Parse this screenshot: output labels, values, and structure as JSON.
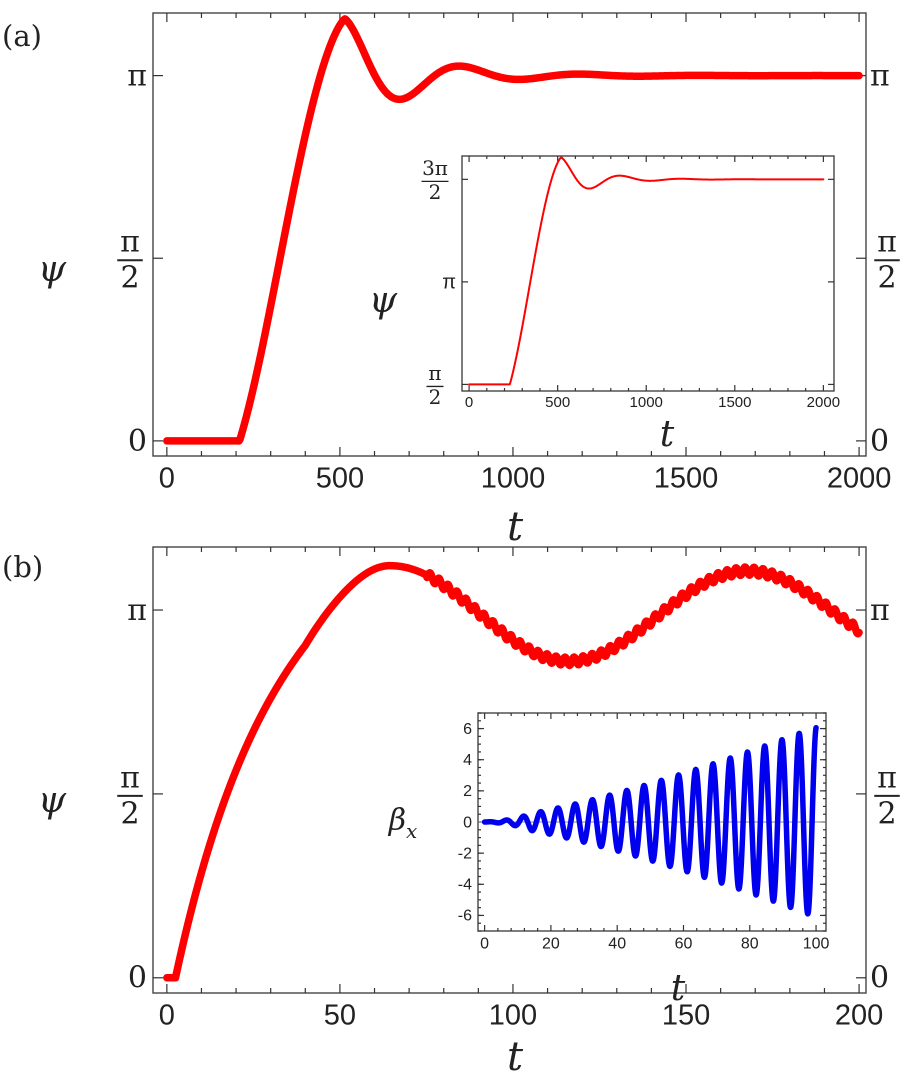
{
  "panel_labels": {
    "a": "(a)",
    "b": "(b)"
  },
  "colors": {
    "main_curve": "#ff0000",
    "inset_b_curve": "#0000ee",
    "frame": "#444444"
  },
  "chart_data": [
    {
      "id": "a-main",
      "type": "line",
      "xlabel": "t",
      "ylabel": "ψ",
      "xlim": [
        -40,
        2020
      ],
      "ylim": [
        -0.13,
        3.68
      ],
      "x_ticks": [
        0,
        500,
        1000,
        1500,
        2000
      ],
      "x_tick_labels": [
        "0",
        "500",
        "1000",
        "1500",
        "2000"
      ],
      "y_ticks": [
        0,
        1.5708,
        3.14159
      ],
      "y_tick_labels": [
        [
          "0"
        ],
        [
          "π",
          "2"
        ],
        [
          "π"
        ]
      ],
      "model": {
        "kind": "damped_step",
        "x0": 210,
        "rise_end": 470,
        "final": 3.14159,
        "peak": 3.63,
        "peak_at": 515,
        "period": 345,
        "decay": 0.0053
      },
      "series": [
        {
          "color": "#ff0000",
          "points": [
            [
              0,
              0
            ],
            [
              210,
              0
            ],
            [
              300,
              0.9
            ],
            [
              400,
              2.35
            ],
            [
              470,
              3.3
            ],
            [
              515,
              3.63
            ],
            [
              600,
              3.4
            ],
            [
              700,
              2.96
            ],
            [
              860,
              3.47
            ],
            [
              1000,
              2.98
            ],
            [
              1180,
              3.3
            ],
            [
              1340,
              3.06
            ],
            [
              1500,
              3.22
            ],
            [
              1700,
              3.1
            ],
            [
              2000,
              3.14
            ]
          ]
        }
      ]
    },
    {
      "id": "a-inset",
      "type": "line",
      "xlabel": "t",
      "ylabel": "ψ",
      "xlim": [
        -40,
        2060
      ],
      "ylim": [
        1.47,
        5.07
      ],
      "x_ticks": [
        0,
        500,
        1000,
        1500,
        2000
      ],
      "x_tick_labels": [
        "0",
        "500",
        "1000",
        "1500",
        "2000"
      ],
      "y_ticks": [
        1.5708,
        3.14159,
        4.71239
      ],
      "y_tick_labels": [
        [
          "π",
          "2"
        ],
        [
          "π"
        ],
        [
          "3π",
          "2"
        ]
      ],
      "model": {
        "kind": "damped_step",
        "x0": 230,
        "rise_end": 470,
        "start": 1.5708,
        "final": 4.71239,
        "peak": 5.05,
        "peak_at": 520,
        "period": 345,
        "decay": 0.0053
      },
      "series": [
        {
          "color": "#ff0000",
          "points": [
            [
              0,
              1.5708
            ],
            [
              230,
              1.5708
            ],
            [
              520,
              5.05
            ],
            [
              710,
              4.18
            ],
            [
              880,
              4.98
            ],
            [
              1040,
              4.5
            ],
            [
              1210,
              4.8
            ],
            [
              2000,
              4.71
            ]
          ]
        }
      ]
    },
    {
      "id": "b-main",
      "type": "line",
      "xlabel": "t",
      "ylabel": "ψ",
      "xlim": [
        -4,
        202
      ],
      "ylim": [
        -0.13,
        3.68
      ],
      "x_ticks": [
        0,
        50,
        100,
        150,
        200
      ],
      "x_tick_labels": [
        "0",
        "50",
        "100",
        "150",
        "200"
      ],
      "y_ticks": [
        0,
        1.5708,
        3.14159
      ],
      "y_tick_labels": [
        [
          "0"
        ],
        [
          "π",
          "2"
        ],
        [
          "π"
        ]
      ],
      "model": {
        "kind": "b_psi"
      },
      "series": [
        {
          "color": "#ff0000",
          "points": [
            [
              0,
              0
            ],
            [
              3,
              0.05
            ],
            [
              10,
              0.9
            ],
            [
              20,
              1.62
            ],
            [
              35,
              2.55
            ],
            [
              50,
              3.25
            ],
            [
              65,
              3.55
            ],
            [
              90,
              2.95
            ],
            [
              115,
              2.63
            ],
            [
              140,
              3.05
            ],
            [
              168,
              3.43
            ],
            [
              190,
              3.2
            ],
            [
              200,
              2.95
            ]
          ]
        }
      ]
    },
    {
      "id": "b-inset",
      "type": "line",
      "xlabel": "t",
      "ylabel": "βx",
      "xlim": [
        -2,
        103
      ],
      "ylim": [
        -7,
        7
      ],
      "x_ticks": [
        0,
        20,
        40,
        60,
        80,
        100
      ],
      "x_tick_labels": [
        "0",
        "20",
        "40",
        "60",
        "80",
        "100"
      ],
      "y_ticks": [
        -6,
        -4,
        -2,
        0,
        2,
        4,
        6
      ],
      "y_tick_labels": [
        [
          "-6"
        ],
        [
          "-4"
        ],
        [
          "-2"
        ],
        [
          "0"
        ],
        [
          "2"
        ],
        [
          "4"
        ],
        [
          "6"
        ]
      ],
      "model": {
        "kind": "b_beta",
        "period": 5.2,
        "amp_end": 6.1
      },
      "series": [
        {
          "color": "#0000ee",
          "points": [
            [
              0,
              0
            ],
            [
              10,
              0.1
            ],
            [
              20,
              -0.5
            ],
            [
              40,
              1.9
            ],
            [
              60,
              -3.8
            ],
            [
              80,
              5.2
            ],
            [
              93,
              6.0
            ],
            [
              96,
              -6.3
            ],
            [
              100,
              2.0
            ]
          ]
        }
      ]
    }
  ]
}
